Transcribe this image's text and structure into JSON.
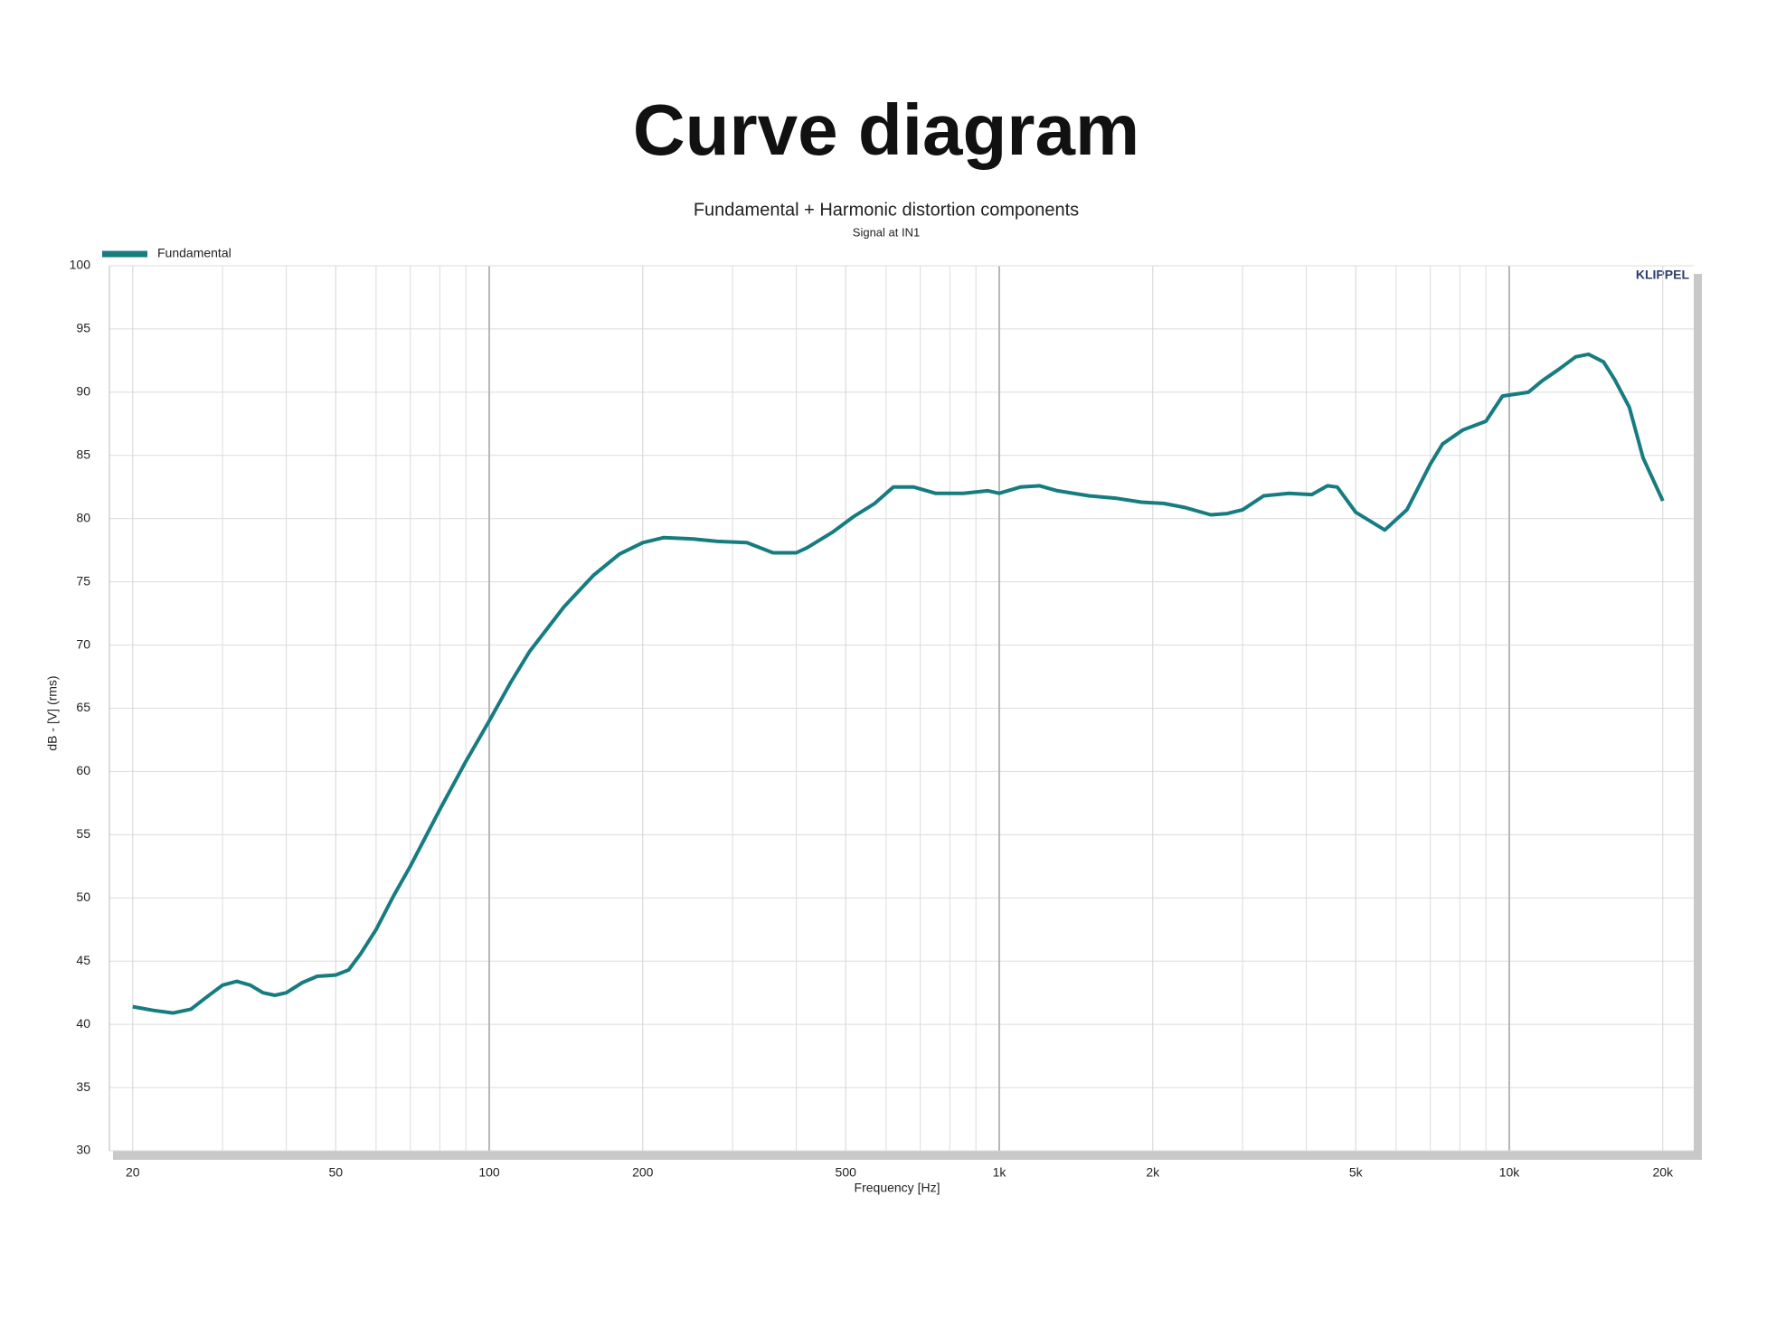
{
  "chart_data": {
    "type": "line",
    "page_title": "Curve diagram",
    "title": "Fundamental + Harmonic distortion components",
    "subtitle": "Signal at IN1",
    "watermark": "KLIPPEL",
    "xlabel": "Frequency [Hz]",
    "ylabel": "dB - [V] (rms)",
    "xscale": "log",
    "grid": true,
    "legend": "top-left",
    "xlim": [
      18,
      23000
    ],
    "ylim": [
      30,
      100
    ],
    "xticks": [
      20,
      50,
      100,
      200,
      500,
      {
        "value": 1000,
        "label": "1k"
      },
      {
        "value": 2000,
        "label": "2k"
      },
      {
        "value": 5000,
        "label": "5k"
      },
      {
        "value": 10000,
        "label": "10k"
      },
      {
        "value": 20000,
        "label": "20k"
      }
    ],
    "xminorticks": [
      30,
      40,
      60,
      70,
      80,
      90,
      300,
      400,
      600,
      700,
      800,
      900,
      3000,
      4000,
      6000,
      7000,
      8000,
      9000
    ],
    "yticks": [
      30,
      35,
      40,
      45,
      50,
      55,
      60,
      65,
      70,
      75,
      80,
      85,
      90,
      95,
      100
    ],
    "x": [
      20,
      22,
      24,
      26,
      28,
      30,
      32,
      34,
      36,
      38,
      40,
      43,
      46,
      50,
      53,
      56,
      60,
      65,
      70,
      80,
      90,
      100,
      110,
      120,
      140,
      160,
      180,
      200,
      220,
      250,
      280,
      320,
      360,
      400,
      420,
      470,
      520,
      570,
      620,
      680,
      750,
      850,
      950,
      1000,
      1100,
      1200,
      1300,
      1500,
      1700,
      1900,
      2100,
      2300,
      2600,
      2800,
      3000,
      3300,
      3700,
      4100,
      4400,
      4600,
      5000,
      5700,
      6300,
      7000,
      7400,
      8100,
      9000,
      9700,
      10900,
      11600,
      12500,
      13500,
      14300,
      15300,
      16100,
      17200,
      18300,
      20000
    ],
    "series": [
      {
        "name": "Fundamental",
        "color": "#167c80",
        "values": [
          41.4,
          41.1,
          40.9,
          41.2,
          42.2,
          43.1,
          43.4,
          43.1,
          42.5,
          42.3,
          42.5,
          43.3,
          43.8,
          43.9,
          44.3,
          45.6,
          47.5,
          50.2,
          52.5,
          57,
          60.8,
          64,
          67,
          69.5,
          73,
          75.5,
          77.2,
          78.1,
          78.5,
          78.4,
          78.2,
          78.1,
          77.3,
          77.3,
          77.7,
          78.9,
          80.2,
          81.2,
          82.5,
          82.5,
          82,
          82,
          82.2,
          82,
          82.5,
          82.6,
          82.2,
          81.8,
          81.6,
          81.3,
          81.2,
          80.9,
          80.3,
          80.4,
          80.7,
          81.8,
          82,
          81.9,
          82.6,
          82.5,
          80.5,
          79.1,
          80.7,
          84.3,
          85.9,
          87,
          87.7,
          89.7,
          90,
          90.9,
          91.8,
          92.8,
          93,
          92.4,
          91,
          88.8,
          84.8,
          81.4
        ]
      }
    ]
  }
}
